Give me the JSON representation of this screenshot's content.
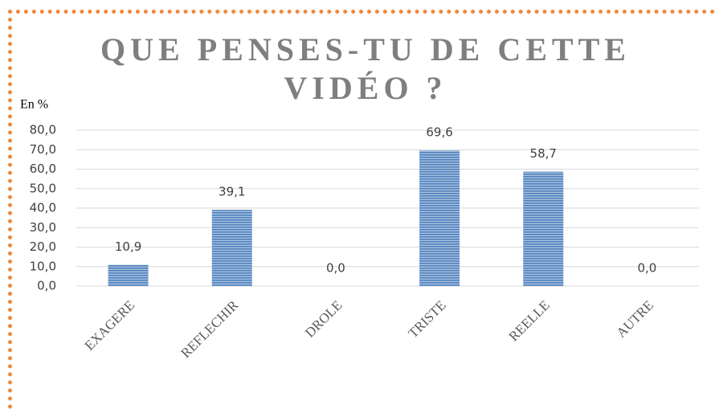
{
  "chart_data": {
    "type": "bar",
    "title": "QUE PENSES-TU DE CETTE VIDÉO ?",
    "y_label": "En %",
    "categories": [
      "EXAGERE",
      "REFLECHIR",
      "DROLE",
      "TRISTE",
      "REELLE",
      "AUTRE"
    ],
    "values": [
      10.9,
      39.1,
      0,
      69.6,
      58.7,
      0
    ],
    "value_labels": [
      "10,9",
      "39,1",
      "0,0",
      "69,6",
      "58,7",
      "0,0"
    ],
    "color": "#4f81bd",
    "ylim": [
      0,
      80
    ],
    "yticks": [
      {
        "value": 0,
        "label": "0,0"
      },
      {
        "value": 10,
        "label": "10,0"
      },
      {
        "value": 20,
        "label": "20,0"
      },
      {
        "value": 30,
        "label": "30,0"
      },
      {
        "value": 40,
        "label": "40,0"
      },
      {
        "value": 50,
        "label": "50,0"
      },
      {
        "value": 60,
        "label": "60,0"
      },
      {
        "value": 70,
        "label": "70,0"
      },
      {
        "value": 80,
        "label": "80,0"
      }
    ],
    "grid": true
  }
}
